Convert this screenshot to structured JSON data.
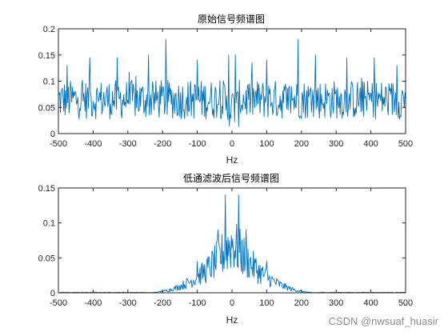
{
  "chart_data": [
    {
      "type": "line",
      "title": "原始信号频谱图",
      "xlabel": "Hz",
      "ylabel": "",
      "xlim": [
        -500,
        500
      ],
      "ylim": [
        0,
        0.2
      ],
      "xticks": [
        "-500",
        "-400",
        "-300",
        "-200",
        "-100",
        "0",
        "100",
        "200",
        "300",
        "400",
        "500"
      ],
      "yticks": [
        "0",
        "0.05",
        "0.1",
        "0.15",
        "0.2"
      ],
      "line_color": "#0072bd",
      "grid": false,
      "description_of_shape": "noisy spectrum, baseline ~0.06, fluctuating 0.02-0.11, peaks to ~0.15",
      "peaks": [
        {
          "x": -475,
          "y": 0.13
        },
        {
          "x": -410,
          "y": 0.145
        },
        {
          "x": -330,
          "y": 0.145
        },
        {
          "x": -240,
          "y": 0.15
        },
        {
          "x": -190,
          "y": 0.18
        },
        {
          "x": -100,
          "y": 0.14
        },
        {
          "x": -10,
          "y": 0.15
        },
        {
          "x": 10,
          "y": 0.15
        },
        {
          "x": 100,
          "y": 0.14
        },
        {
          "x": 190,
          "y": 0.18
        },
        {
          "x": 240,
          "y": 0.15
        },
        {
          "x": 330,
          "y": 0.145
        },
        {
          "x": 410,
          "y": 0.145
        },
        {
          "x": 475,
          "y": 0.13
        }
      ]
    },
    {
      "type": "line",
      "title": "低通滤波后信号频谱图",
      "xlabel": "Hz",
      "ylabel": "",
      "xlim": [
        -500,
        500
      ],
      "ylim": [
        0,
        0.15
      ],
      "xticks": [
        "-500",
        "-400",
        "-300",
        "-200",
        "-100",
        "0",
        "100",
        "200",
        "300",
        "400",
        "500"
      ],
      "yticks": [
        "0",
        "0.05",
        "0.1",
        "0.15"
      ],
      "line_color": "#0072bd",
      "grid": false,
      "description_of_shape": "low-pass filtered spectrum, near zero beyond ±250 Hz, rising towards centre, twin peaks ~0.14 at ±20 Hz",
      "peaks": [
        {
          "x": -20,
          "y": 0.14
        },
        {
          "x": 20,
          "y": 0.14
        },
        {
          "x": -40,
          "y": 0.09
        },
        {
          "x": 40,
          "y": 0.09
        },
        {
          "x": -100,
          "y": 0.045
        },
        {
          "x": 100,
          "y": 0.045
        }
      ]
    }
  ],
  "watermark": "CSDN @nwsuaf_huasir"
}
